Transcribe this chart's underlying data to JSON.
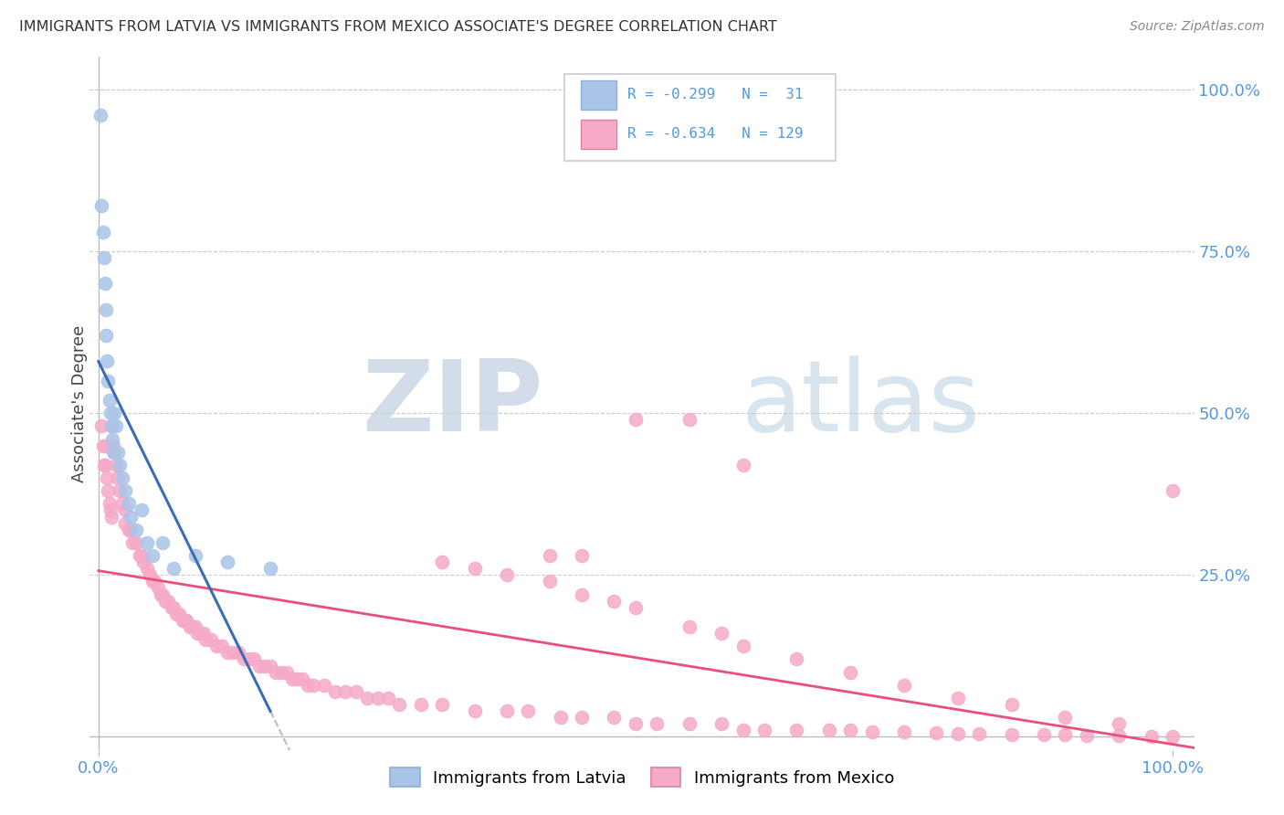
{
  "title": "IMMIGRANTS FROM LATVIA VS IMMIGRANTS FROM MEXICO ASSOCIATE'S DEGREE CORRELATION CHART",
  "source": "Source: ZipAtlas.com",
  "ylabel": "Associate's Degree",
  "legend_label1": "Immigrants from Latvia",
  "legend_label2": "Immigrants from Mexico",
  "R_latvia": -0.299,
  "N_latvia": 31,
  "R_mexico": -0.634,
  "N_mexico": 129,
  "color_latvia": "#aac4e8",
  "color_mexico": "#f5aac8",
  "color_latvia_line": "#3a6db5",
  "color_mexico_line": "#e8507a",
  "color_dash": "#bbbbbb",
  "watermark_ZIP_color": "#c5d5e8",
  "watermark_atlas_color": "#b0c8e0",
  "background_color": "#ffffff",
  "grid_color": "#cccccc",
  "right_tick_color": "#5599dd",
  "ylabel_right_ticks": [
    "100.0%",
    "75.0%",
    "50.0%",
    "25.0%"
  ],
  "ylabel_right_vals": [
    1.0,
    0.75,
    0.5,
    0.25
  ],
  "xlim": [
    0.0,
    1.0
  ],
  "ylim": [
    0.0,
    1.0
  ],
  "latvia_scatter_x": [
    0.002,
    0.003,
    0.004,
    0.005,
    0.006,
    0.007,
    0.007,
    0.008,
    0.009,
    0.01,
    0.011,
    0.012,
    0.013,
    0.014,
    0.015,
    0.016,
    0.018,
    0.02,
    0.022,
    0.025,
    0.028,
    0.03,
    0.035,
    0.04,
    0.045,
    0.05,
    0.06,
    0.07,
    0.09,
    0.12,
    0.16
  ],
  "latvia_scatter_y": [
    0.96,
    0.82,
    0.78,
    0.74,
    0.7,
    0.66,
    0.62,
    0.58,
    0.55,
    0.52,
    0.5,
    0.48,
    0.46,
    0.44,
    0.5,
    0.48,
    0.44,
    0.42,
    0.4,
    0.38,
    0.36,
    0.34,
    0.32,
    0.35,
    0.3,
    0.28,
    0.3,
    0.26,
    0.28,
    0.27,
    0.26
  ],
  "mexico_scatter_x": [
    0.003,
    0.004,
    0.005,
    0.006,
    0.007,
    0.008,
    0.009,
    0.01,
    0.011,
    0.012,
    0.013,
    0.014,
    0.015,
    0.016,
    0.018,
    0.02,
    0.022,
    0.025,
    0.025,
    0.028,
    0.03,
    0.032,
    0.035,
    0.038,
    0.04,
    0.042,
    0.045,
    0.048,
    0.05,
    0.052,
    0.055,
    0.058,
    0.06,
    0.062,
    0.065,
    0.068,
    0.07,
    0.072,
    0.075,
    0.078,
    0.08,
    0.082,
    0.085,
    0.088,
    0.09,
    0.092,
    0.095,
    0.098,
    0.1,
    0.105,
    0.11,
    0.115,
    0.12,
    0.125,
    0.13,
    0.135,
    0.14,
    0.145,
    0.15,
    0.155,
    0.16,
    0.165,
    0.17,
    0.175,
    0.18,
    0.185,
    0.19,
    0.195,
    0.2,
    0.21,
    0.22,
    0.23,
    0.24,
    0.25,
    0.26,
    0.27,
    0.28,
    0.3,
    0.32,
    0.35,
    0.38,
    0.4,
    0.43,
    0.45,
    0.48,
    0.5,
    0.52,
    0.55,
    0.58,
    0.6,
    0.62,
    0.65,
    0.68,
    0.7,
    0.72,
    0.75,
    0.78,
    0.8,
    0.82,
    0.85,
    0.88,
    0.9,
    0.92,
    0.95,
    0.98,
    1.0,
    0.42,
    0.45,
    0.5,
    0.55,
    0.6,
    0.32,
    0.35,
    0.38,
    0.42,
    0.45,
    0.48,
    0.5,
    0.55,
    0.58,
    0.6,
    0.65,
    0.7,
    0.75,
    0.8,
    0.85,
    0.9,
    0.95,
    1.0
  ],
  "mexico_scatter_y": [
    0.48,
    0.45,
    0.42,
    0.42,
    0.45,
    0.4,
    0.38,
    0.36,
    0.35,
    0.34,
    0.48,
    0.45,
    0.44,
    0.42,
    0.4,
    0.38,
    0.36,
    0.35,
    0.33,
    0.32,
    0.32,
    0.3,
    0.3,
    0.28,
    0.28,
    0.27,
    0.26,
    0.25,
    0.24,
    0.24,
    0.23,
    0.22,
    0.22,
    0.21,
    0.21,
    0.2,
    0.2,
    0.19,
    0.19,
    0.18,
    0.18,
    0.18,
    0.17,
    0.17,
    0.17,
    0.16,
    0.16,
    0.16,
    0.15,
    0.15,
    0.14,
    0.14,
    0.13,
    0.13,
    0.13,
    0.12,
    0.12,
    0.12,
    0.11,
    0.11,
    0.11,
    0.1,
    0.1,
    0.1,
    0.09,
    0.09,
    0.09,
    0.08,
    0.08,
    0.08,
    0.07,
    0.07,
    0.07,
    0.06,
    0.06,
    0.06,
    0.05,
    0.05,
    0.05,
    0.04,
    0.04,
    0.04,
    0.03,
    0.03,
    0.03,
    0.02,
    0.02,
    0.02,
    0.02,
    0.01,
    0.01,
    0.01,
    0.01,
    0.01,
    0.008,
    0.008,
    0.006,
    0.005,
    0.005,
    0.004,
    0.004,
    0.003,
    0.002,
    0.002,
    0.001,
    0.001,
    0.28,
    0.28,
    0.49,
    0.49,
    0.42,
    0.27,
    0.26,
    0.25,
    0.24,
    0.22,
    0.21,
    0.2,
    0.17,
    0.16,
    0.14,
    0.12,
    0.1,
    0.08,
    0.06,
    0.05,
    0.03,
    0.02,
    0.38
  ]
}
